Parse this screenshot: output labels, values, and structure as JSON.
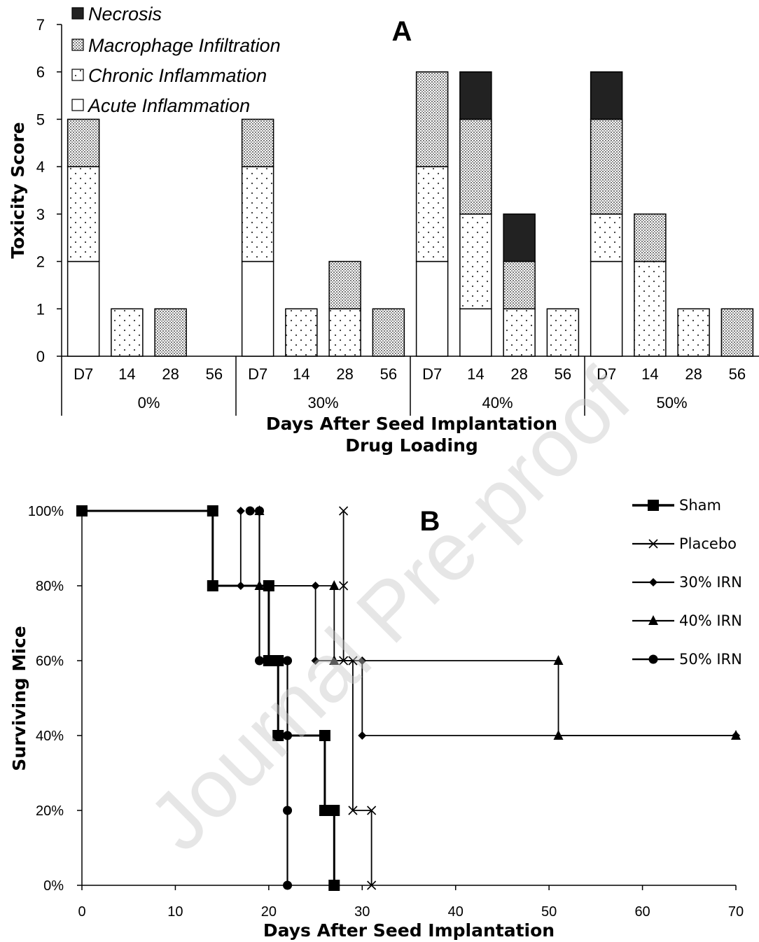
{
  "chart_data": [
    {
      "type": "bar",
      "stacked": true,
      "panel_label": "A",
      "ylabel": "Toxicity Score",
      "xlabel": "Days After Seed Implantation",
      "xlabel2": "Drug Loading",
      "ylim": [
        0,
        7
      ],
      "yticks": [
        "0",
        "1",
        "2",
        "3",
        "4",
        "5",
        "6",
        "7"
      ],
      "grid": false,
      "legend_placement": "top-left",
      "groups": [
        "0%",
        "30%",
        "40%",
        "50%"
      ],
      "categories": [
        "D7",
        "14",
        "28",
        "56",
        "D7",
        "14",
        "28",
        "56",
        "D7",
        "14",
        "28",
        "56",
        "D7",
        "14",
        "28",
        "56"
      ],
      "series": [
        {
          "name": "Acute Inflammation",
          "pattern": "white",
          "values": [
            2,
            0,
            0,
            0,
            2,
            0,
            0,
            0,
            2,
            1,
            0,
            0,
            2,
            0,
            0,
            0
          ]
        },
        {
          "name": "Chronic Inflammation",
          "pattern": "sparse-dots",
          "values": [
            2,
            1,
            0,
            0,
            2,
            1,
            1,
            0,
            2,
            2,
            1,
            1,
            1,
            2,
            1,
            0
          ]
        },
        {
          "name": "Macrophage Infiltration",
          "pattern": "dense-dots",
          "values": [
            1,
            0,
            1,
            0,
            1,
            0,
            1,
            1,
            2,
            2,
            1,
            0,
            2,
            1,
            0,
            1
          ]
        },
        {
          "name": "Necrosis",
          "pattern": "black",
          "values": [
            0,
            0,
            0,
            0,
            0,
            0,
            0,
            0,
            0,
            1,
            1,
            0,
            1,
            0,
            0,
            0
          ]
        }
      ],
      "legend_order": [
        "Necrosis",
        "Macrophage Infiltration",
        "Chronic Inflammation",
        "Acute Inflammation"
      ]
    },
    {
      "type": "line",
      "step": true,
      "panel_label": "B",
      "ylabel": "Surviving Mice",
      "xlabel": "Days After Seed Implantation",
      "xlim": [
        0,
        70
      ],
      "xticks": [
        "0",
        "10",
        "20",
        "30",
        "40",
        "50",
        "60",
        "70"
      ],
      "ylim": [
        0,
        100
      ],
      "yticks": [
        "0%",
        "20%",
        "40%",
        "60%",
        "80%",
        "100%"
      ],
      "grid": false,
      "legend_placement": "top-right",
      "series": [
        {
          "name": "Sham",
          "marker": "square",
          "stroke_width": 3,
          "points": [
            [
              0,
              100
            ],
            [
              14,
              100
            ],
            [
              14,
              80
            ],
            [
              20,
              80
            ],
            [
              20,
              60
            ],
            [
              21,
              60
            ],
            [
              21,
              40
            ],
            [
              26,
              40
            ],
            [
              26,
              20
            ],
            [
              27,
              20
            ],
            [
              27,
              0
            ]
          ]
        },
        {
          "name": "Placebo",
          "marker": "x",
          "stroke_width": 1.8,
          "points": [
            [
              28,
              100
            ],
            [
              28,
              80
            ],
            [
              28,
              60
            ],
            [
              29,
              60
            ],
            [
              29,
              20
            ],
            [
              31,
              20
            ],
            [
              31,
              0
            ]
          ]
        },
        {
          "name": "30% IRN",
          "marker": "diamond",
          "stroke_width": 1.8,
          "points": [
            [
              17,
              100
            ],
            [
              17,
              80
            ],
            [
              25,
              80
            ],
            [
              25,
              60
            ],
            [
              30,
              60
            ],
            [
              30,
              40
            ],
            [
              70,
              40
            ]
          ]
        },
        {
          "name": "40% IRN",
          "marker": "triangle",
          "stroke_width": 1.8,
          "points": [
            [
              19,
              100
            ],
            [
              19,
              80
            ],
            [
              27,
              80
            ],
            [
              27,
              60
            ],
            [
              51,
              60
            ],
            [
              51,
              40
            ],
            [
              70,
              40
            ]
          ]
        },
        {
          "name": "50% IRN",
          "marker": "circle",
          "stroke_width": 2.2,
          "points": [
            [
              18,
              100
            ],
            [
              19,
              100
            ],
            [
              19,
              60
            ],
            [
              22,
              60
            ],
            [
              22,
              40
            ],
            [
              22,
              20
            ],
            [
              22,
              0
            ]
          ]
        }
      ]
    }
  ],
  "watermark": "Journal Pre-proof"
}
